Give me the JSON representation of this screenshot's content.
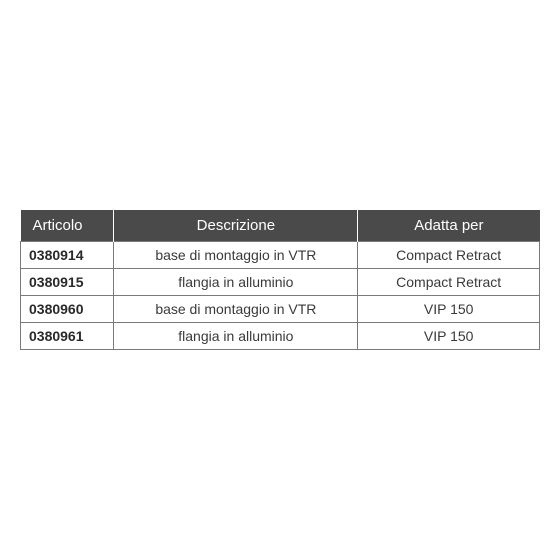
{
  "table": {
    "columns": [
      "Articolo",
      "Descrizione",
      "Adatta per"
    ],
    "col_widths": [
      "18%",
      "47%",
      "35%"
    ],
    "header_bg": "#4a4a4a",
    "header_fg": "#ffffff",
    "header_fontsize": 15,
    "header_fontweight": 400,
    "border_color": "#7a7a7a",
    "cell_fontsize": 14,
    "cell_fg": "#3a3a3a",
    "first_col_fontweight": 700,
    "rows": [
      [
        "0380914",
        "base di montaggio in VTR",
        "Compact Retract"
      ],
      [
        "0380915",
        "flangia in alluminio",
        "Compact Retract"
      ],
      [
        "0380960",
        "base di montaggio in VTR",
        "VIP 150"
      ],
      [
        "0380961",
        "flangia in alluminio",
        "VIP 150"
      ]
    ]
  }
}
